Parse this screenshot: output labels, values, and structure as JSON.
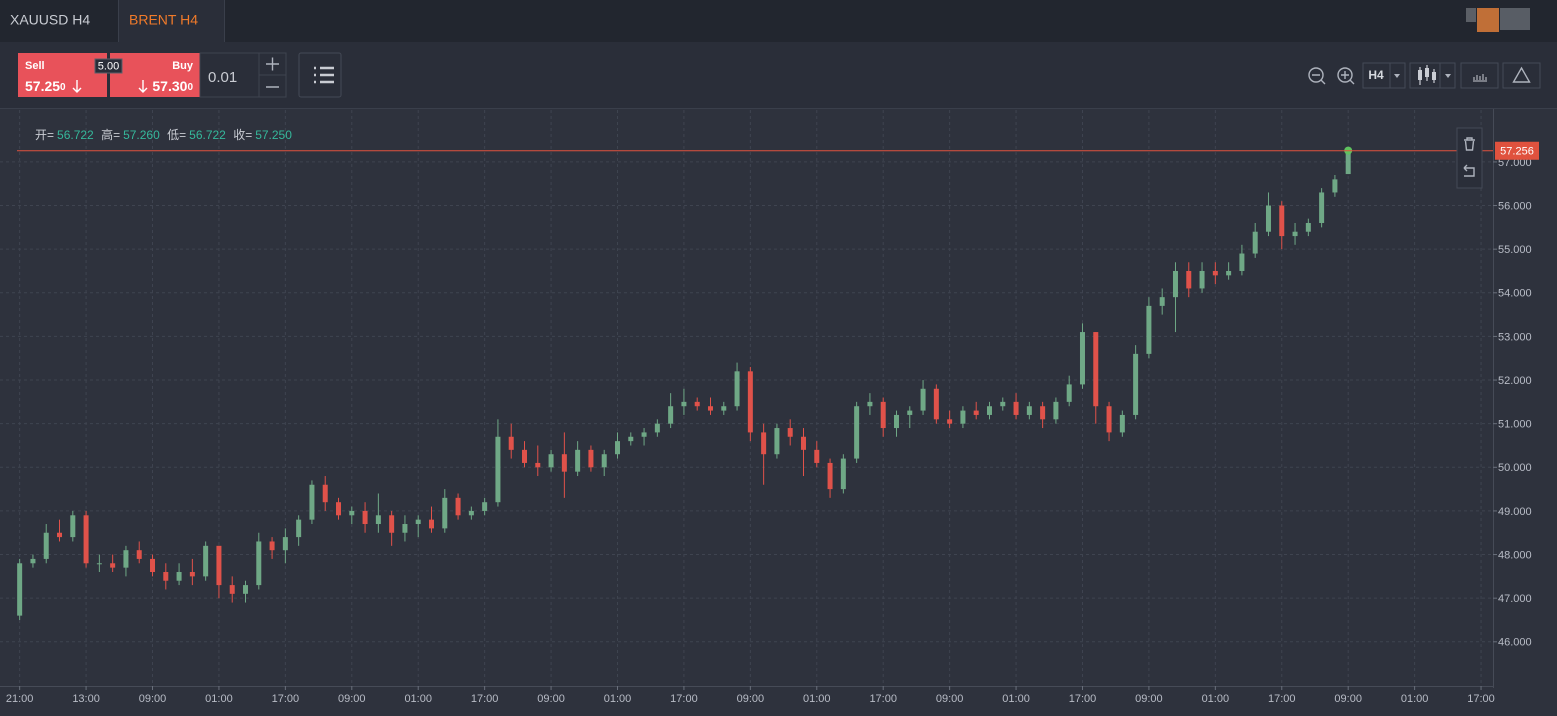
{
  "tabs": [
    "XAUUSD H4",
    "BRENT H4"
  ],
  "toolbar": {
    "sell": {
      "label": "Sell",
      "price": "57.25",
      "pip": "0"
    },
    "spread": "5.00",
    "buy": {
      "label": "Buy",
      "price": "57.30",
      "pip": "0"
    },
    "lot": "0.01",
    "timeframe": "H4"
  },
  "ohlc_info": [
    {
      "label": "开=",
      "value": "56.722"
    },
    {
      "label": "高=",
      "value": "57.260"
    },
    {
      "label": "低=",
      "value": "56.722"
    },
    {
      "label": "收=",
      "value": "57.250"
    }
  ],
  "chart_data": {
    "type": "candlestick",
    "up_color": "#6fa886",
    "down_color": "#e0524a",
    "grid": true,
    "price_line": {
      "value": 57.256,
      "label": "57.256",
      "color": "#e0523e"
    },
    "xlim": [
      -0.2,
      110.9
    ],
    "ylim": [
      45.01,
      58.19
    ],
    "yticks": [
      {
        "value": 46,
        "label": "46.000"
      },
      {
        "value": 47,
        "label": "47.000"
      },
      {
        "value": 48,
        "label": "48.000"
      },
      {
        "value": 49,
        "label": "49.000"
      },
      {
        "value": 50,
        "label": "50.000"
      },
      {
        "value": 51,
        "label": "51.000"
      },
      {
        "value": 52,
        "label": "52.000"
      },
      {
        "value": 53,
        "label": "53.000"
      },
      {
        "value": 54,
        "label": "54.000"
      },
      {
        "value": 55,
        "label": "55.000"
      },
      {
        "value": 56,
        "label": "56.000"
      },
      {
        "value": 57,
        "label": "57.000"
      }
    ],
    "xticks": [
      {
        "value": 0,
        "label": "21:00"
      },
      {
        "value": 5,
        "label": "13:00"
      },
      {
        "value": 10,
        "label": "09:00"
      },
      {
        "value": 15,
        "label": "01:00"
      },
      {
        "value": 20,
        "label": "17:00"
      },
      {
        "value": 25,
        "label": "09:00"
      },
      {
        "value": 30,
        "label": "01:00"
      },
      {
        "value": 35,
        "label": "17:00"
      },
      {
        "value": 40,
        "label": "09:00"
      },
      {
        "value": 45,
        "label": "01:00"
      },
      {
        "value": 50,
        "label": "17:00"
      },
      {
        "value": 55,
        "label": "09:00"
      },
      {
        "value": 60,
        "label": "01:00"
      },
      {
        "value": 65,
        "label": "17:00"
      },
      {
        "value": 70,
        "label": "09:00"
      },
      {
        "value": 75,
        "label": "01:00"
      },
      {
        "value": 80,
        "label": "17:00"
      },
      {
        "value": 85,
        "label": "09:00"
      },
      {
        "value": 90,
        "label": "01:00"
      },
      {
        "value": 95,
        "label": "17:00"
      },
      {
        "value": 100,
        "label": "09:00"
      },
      {
        "value": 105,
        "label": "01:00"
      },
      {
        "value": 110,
        "label": "17:00"
      }
    ],
    "ohlc": [
      [
        46.6,
        47.9,
        46.5,
        47.8
      ],
      [
        47.8,
        48.0,
        47.7,
        47.9
      ],
      [
        47.9,
        48.7,
        47.8,
        48.5
      ],
      [
        48.5,
        48.8,
        48.3,
        48.4
      ],
      [
        48.4,
        49.0,
        48.3,
        48.9
      ],
      [
        48.9,
        49.0,
        47.7,
        47.8
      ],
      [
        47.8,
        48.0,
        47.6,
        47.8
      ],
      [
        47.8,
        48.0,
        47.6,
        47.7
      ],
      [
        47.7,
        48.2,
        47.5,
        48.1
      ],
      [
        48.1,
        48.3,
        47.8,
        47.9
      ],
      [
        47.9,
        48.0,
        47.5,
        47.6
      ],
      [
        47.6,
        47.8,
        47.2,
        47.4
      ],
      [
        47.4,
        47.8,
        47.3,
        47.6
      ],
      [
        47.6,
        47.9,
        47.3,
        47.5
      ],
      [
        47.5,
        48.3,
        47.4,
        48.2
      ],
      [
        48.2,
        48.2,
        47.0,
        47.3
      ],
      [
        47.3,
        47.5,
        46.9,
        47.1
      ],
      [
        47.1,
        47.4,
        46.9,
        47.3
      ],
      [
        47.3,
        48.5,
        47.2,
        48.3
      ],
      [
        48.3,
        48.4,
        47.9,
        48.1
      ],
      [
        48.1,
        48.6,
        47.8,
        48.4
      ],
      [
        48.4,
        48.9,
        48.2,
        48.8
      ],
      [
        48.8,
        49.7,
        48.7,
        49.6
      ],
      [
        49.6,
        49.8,
        49.0,
        49.2
      ],
      [
        49.2,
        49.3,
        48.8,
        48.9
      ],
      [
        48.9,
        49.1,
        48.7,
        49.0
      ],
      [
        49.0,
        49.2,
        48.5,
        48.7
      ],
      [
        48.7,
        49.4,
        48.5,
        48.9
      ],
      [
        48.9,
        49.0,
        48.2,
        48.5
      ],
      [
        48.5,
        48.9,
        48.3,
        48.7
      ],
      [
        48.7,
        48.9,
        48.4,
        48.8
      ],
      [
        48.8,
        49.1,
        48.5,
        48.6
      ],
      [
        48.6,
        49.5,
        48.5,
        49.3
      ],
      [
        49.3,
        49.4,
        48.8,
        48.9
      ],
      [
        48.9,
        49.1,
        48.8,
        49.0
      ],
      [
        49.0,
        49.3,
        48.9,
        49.2
      ],
      [
        49.2,
        51.1,
        49.1,
        50.7
      ],
      [
        50.7,
        51.0,
        50.2,
        50.4
      ],
      [
        50.4,
        50.6,
        50.0,
        50.1
      ],
      [
        50.1,
        50.5,
        49.8,
        50.0
      ],
      [
        50.0,
        50.4,
        49.9,
        50.3
      ],
      [
        50.3,
        50.8,
        49.3,
        49.9
      ],
      [
        49.9,
        50.6,
        49.8,
        50.4
      ],
      [
        50.4,
        50.5,
        49.9,
        50.0
      ],
      [
        50.0,
        50.4,
        49.8,
        50.3
      ],
      [
        50.3,
        50.8,
        50.2,
        50.6
      ],
      [
        50.6,
        50.8,
        50.5,
        50.7
      ],
      [
        50.7,
        50.9,
        50.5,
        50.8
      ],
      [
        50.8,
        51.1,
        50.7,
        51.0
      ],
      [
        51.0,
        51.7,
        50.9,
        51.4
      ],
      [
        51.4,
        51.8,
        51.2,
        51.5
      ],
      [
        51.5,
        51.6,
        51.3,
        51.4
      ],
      [
        51.4,
        51.6,
        51.2,
        51.3
      ],
      [
        51.3,
        51.5,
        51.2,
        51.4
      ],
      [
        51.4,
        52.4,
        51.3,
        52.2
      ],
      [
        52.2,
        52.3,
        50.6,
        50.8
      ],
      [
        50.8,
        51.0,
        49.6,
        50.3
      ],
      [
        50.3,
        51.0,
        50.2,
        50.9
      ],
      [
        50.9,
        51.1,
        50.5,
        50.7
      ],
      [
        50.7,
        50.9,
        49.8,
        50.4
      ],
      [
        50.4,
        50.6,
        50.0,
        50.1
      ],
      [
        50.1,
        50.2,
        49.3,
        49.5
      ],
      [
        49.5,
        50.3,
        49.4,
        50.2
      ],
      [
        50.2,
        51.5,
        50.1,
        51.4
      ],
      [
        51.4,
        51.7,
        51.2,
        51.5
      ],
      [
        51.5,
        51.6,
        50.7,
        50.9
      ],
      [
        50.9,
        51.3,
        50.7,
        51.2
      ],
      [
        51.2,
        51.4,
        50.9,
        51.3
      ],
      [
        51.3,
        52.0,
        51.2,
        51.8
      ],
      [
        51.8,
        51.9,
        51.0,
        51.1
      ],
      [
        51.1,
        51.3,
        50.9,
        51.0
      ],
      [
        51.0,
        51.4,
        50.9,
        51.3
      ],
      [
        51.3,
        51.5,
        51.1,
        51.2
      ],
      [
        51.2,
        51.5,
        51.1,
        51.4
      ],
      [
        51.4,
        51.6,
        51.3,
        51.5
      ],
      [
        51.5,
        51.7,
        51.1,
        51.2
      ],
      [
        51.2,
        51.5,
        51.1,
        51.4
      ],
      [
        51.4,
        51.5,
        50.9,
        51.1
      ],
      [
        51.1,
        51.6,
        51.0,
        51.5
      ],
      [
        51.5,
        52.1,
        51.4,
        51.9
      ],
      [
        51.9,
        53.3,
        51.8,
        53.1
      ],
      [
        53.1,
        53.1,
        51.0,
        51.4
      ],
      [
        51.4,
        51.5,
        50.6,
        50.8
      ],
      [
        50.8,
        51.3,
        50.7,
        51.2
      ],
      [
        51.2,
        52.8,
        51.1,
        52.6
      ],
      [
        52.6,
        53.9,
        52.5,
        53.7
      ],
      [
        53.7,
        54.1,
        53.5,
        53.9
      ],
      [
        53.9,
        54.7,
        53.1,
        54.5
      ],
      [
        54.5,
        54.7,
        53.9,
        54.1
      ],
      [
        54.1,
        54.7,
        54.0,
        54.5
      ],
      [
        54.5,
        54.7,
        54.2,
        54.4
      ],
      [
        54.4,
        54.7,
        54.3,
        54.5
      ],
      [
        54.5,
        55.1,
        54.4,
        54.9
      ],
      [
        54.9,
        55.6,
        54.8,
        55.4
      ],
      [
        55.4,
        56.3,
        55.3,
        56.0
      ],
      [
        56.0,
        56.1,
        55.0,
        55.3
      ],
      [
        55.3,
        55.6,
        55.1,
        55.4
      ],
      [
        55.4,
        55.7,
        55.3,
        55.6
      ],
      [
        55.6,
        56.4,
        55.5,
        56.3
      ],
      [
        56.3,
        56.7,
        56.2,
        56.6
      ],
      [
        56.722,
        57.26,
        56.722,
        57.25
      ]
    ]
  }
}
